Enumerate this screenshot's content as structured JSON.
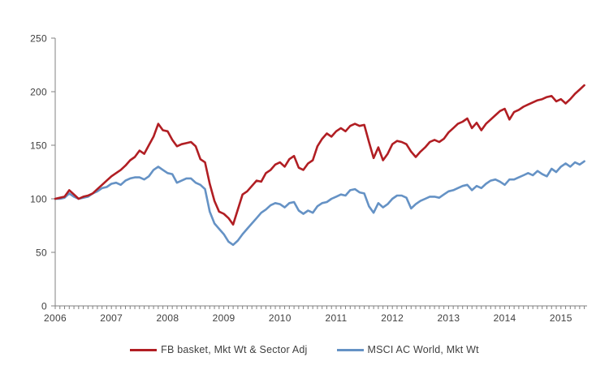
{
  "chart_data": {
    "type": "line",
    "title": "",
    "x_start": "2006-01",
    "x_frequency": "monthly",
    "x_tick_labels": [
      "2006",
      "2007",
      "2008",
      "2009",
      "2010",
      "2011",
      "2012",
      "2013",
      "2014",
      "2015"
    ],
    "y_tick_labels": [
      "0",
      "50",
      "100",
      "150",
      "200",
      "250"
    ],
    "y_tick_values": [
      0,
      50,
      100,
      150,
      200,
      250
    ],
    "ylim": [
      0,
      250
    ],
    "grid": false,
    "legend_position": "bottom-center",
    "series": [
      {
        "name": "FB basket, Mkt Wt & Sector Adj",
        "color": "#B11E23",
        "values": [
          100,
          101,
          102,
          108,
          104,
          100,
          102,
          103,
          105,
          109,
          113,
          117,
          121,
          124,
          127,
          131,
          136,
          139,
          145,
          142,
          150,
          158,
          170,
          164,
          163,
          155,
          149,
          151,
          152,
          153,
          149,
          137,
          134,
          114,
          98,
          88,
          86,
          82,
          76,
          90,
          104,
          107,
          112,
          117,
          116,
          124,
          127,
          132,
          134,
          130,
          137,
          140,
          129,
          127,
          133,
          136,
          149,
          156,
          161,
          158,
          163,
          166,
          163,
          168,
          170,
          168,
          169,
          153,
          138,
          148,
          136,
          142,
          151,
          154,
          153,
          151,
          144,
          139,
          144,
          148,
          153,
          155,
          153,
          156,
          162,
          166,
          170,
          172,
          175,
          166,
          171,
          164,
          170,
          174,
          178,
          182,
          184,
          174,
          181,
          183,
          186,
          188,
          190,
          192,
          193,
          195,
          196,
          191,
          193,
          189,
          193,
          198,
          202,
          206
        ]
      },
      {
        "name": "MSCI AC World, Mkt Wt",
        "color": "#6592C5",
        "values": [
          100,
          100,
          101,
          105,
          102,
          100,
          101,
          102,
          105,
          107,
          110,
          111,
          114,
          115,
          113,
          117,
          119,
          120,
          120,
          118,
          121,
          127,
          130,
          127,
          124,
          123,
          115,
          117,
          119,
          119,
          115,
          113,
          109,
          88,
          77,
          72,
          67,
          60,
          57,
          61,
          67,
          72,
          77,
          82,
          87,
          90,
          94,
          96,
          95,
          92,
          96,
          97,
          89,
          86,
          89,
          87,
          93,
          96,
          97,
          100,
          102,
          104,
          103,
          108,
          109,
          106,
          105,
          93,
          87,
          96,
          92,
          95,
          100,
          103,
          103,
          101,
          91,
          95,
          98,
          100,
          102,
          102,
          101,
          104,
          107,
          108,
          110,
          112,
          113,
          108,
          112,
          110,
          114,
          117,
          118,
          116,
          113,
          118,
          118,
          120,
          122,
          124,
          122,
          126,
          123,
          121,
          128,
          125,
          130,
          133,
          130,
          134,
          132,
          135
        ]
      }
    ]
  },
  "colors": {
    "background": "#FFFFFF",
    "axis": "#808080",
    "tick_label": "#404040",
    "legend_text": "#3F3F3F"
  }
}
